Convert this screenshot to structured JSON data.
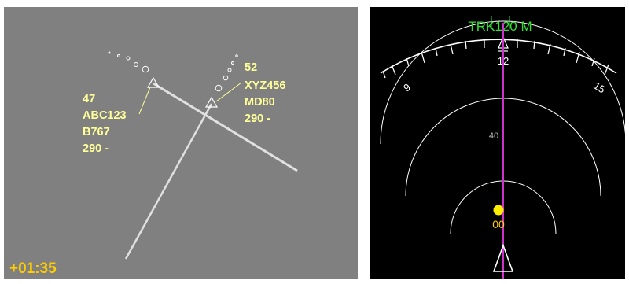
{
  "radar": {
    "timer": "+01:35",
    "aircraft": [
      {
        "id": "ABC123",
        "lines": [
          "47",
          "ABC123",
          "B767",
          "290 -"
        ]
      },
      {
        "id": "XYZ456",
        "lines": [
          "52",
          "XYZ456",
          "MD80",
          "290 -"
        ]
      }
    ]
  },
  "nd": {
    "track_label": "TRK120 M",
    "heading_scale": [
      "9",
      "12",
      "15"
    ],
    "range_label": "40",
    "traffic_alt": "00",
    "colors": {
      "track": "#33dd33",
      "course": "#cc33cc",
      "traffic": "#ffee00"
    }
  }
}
